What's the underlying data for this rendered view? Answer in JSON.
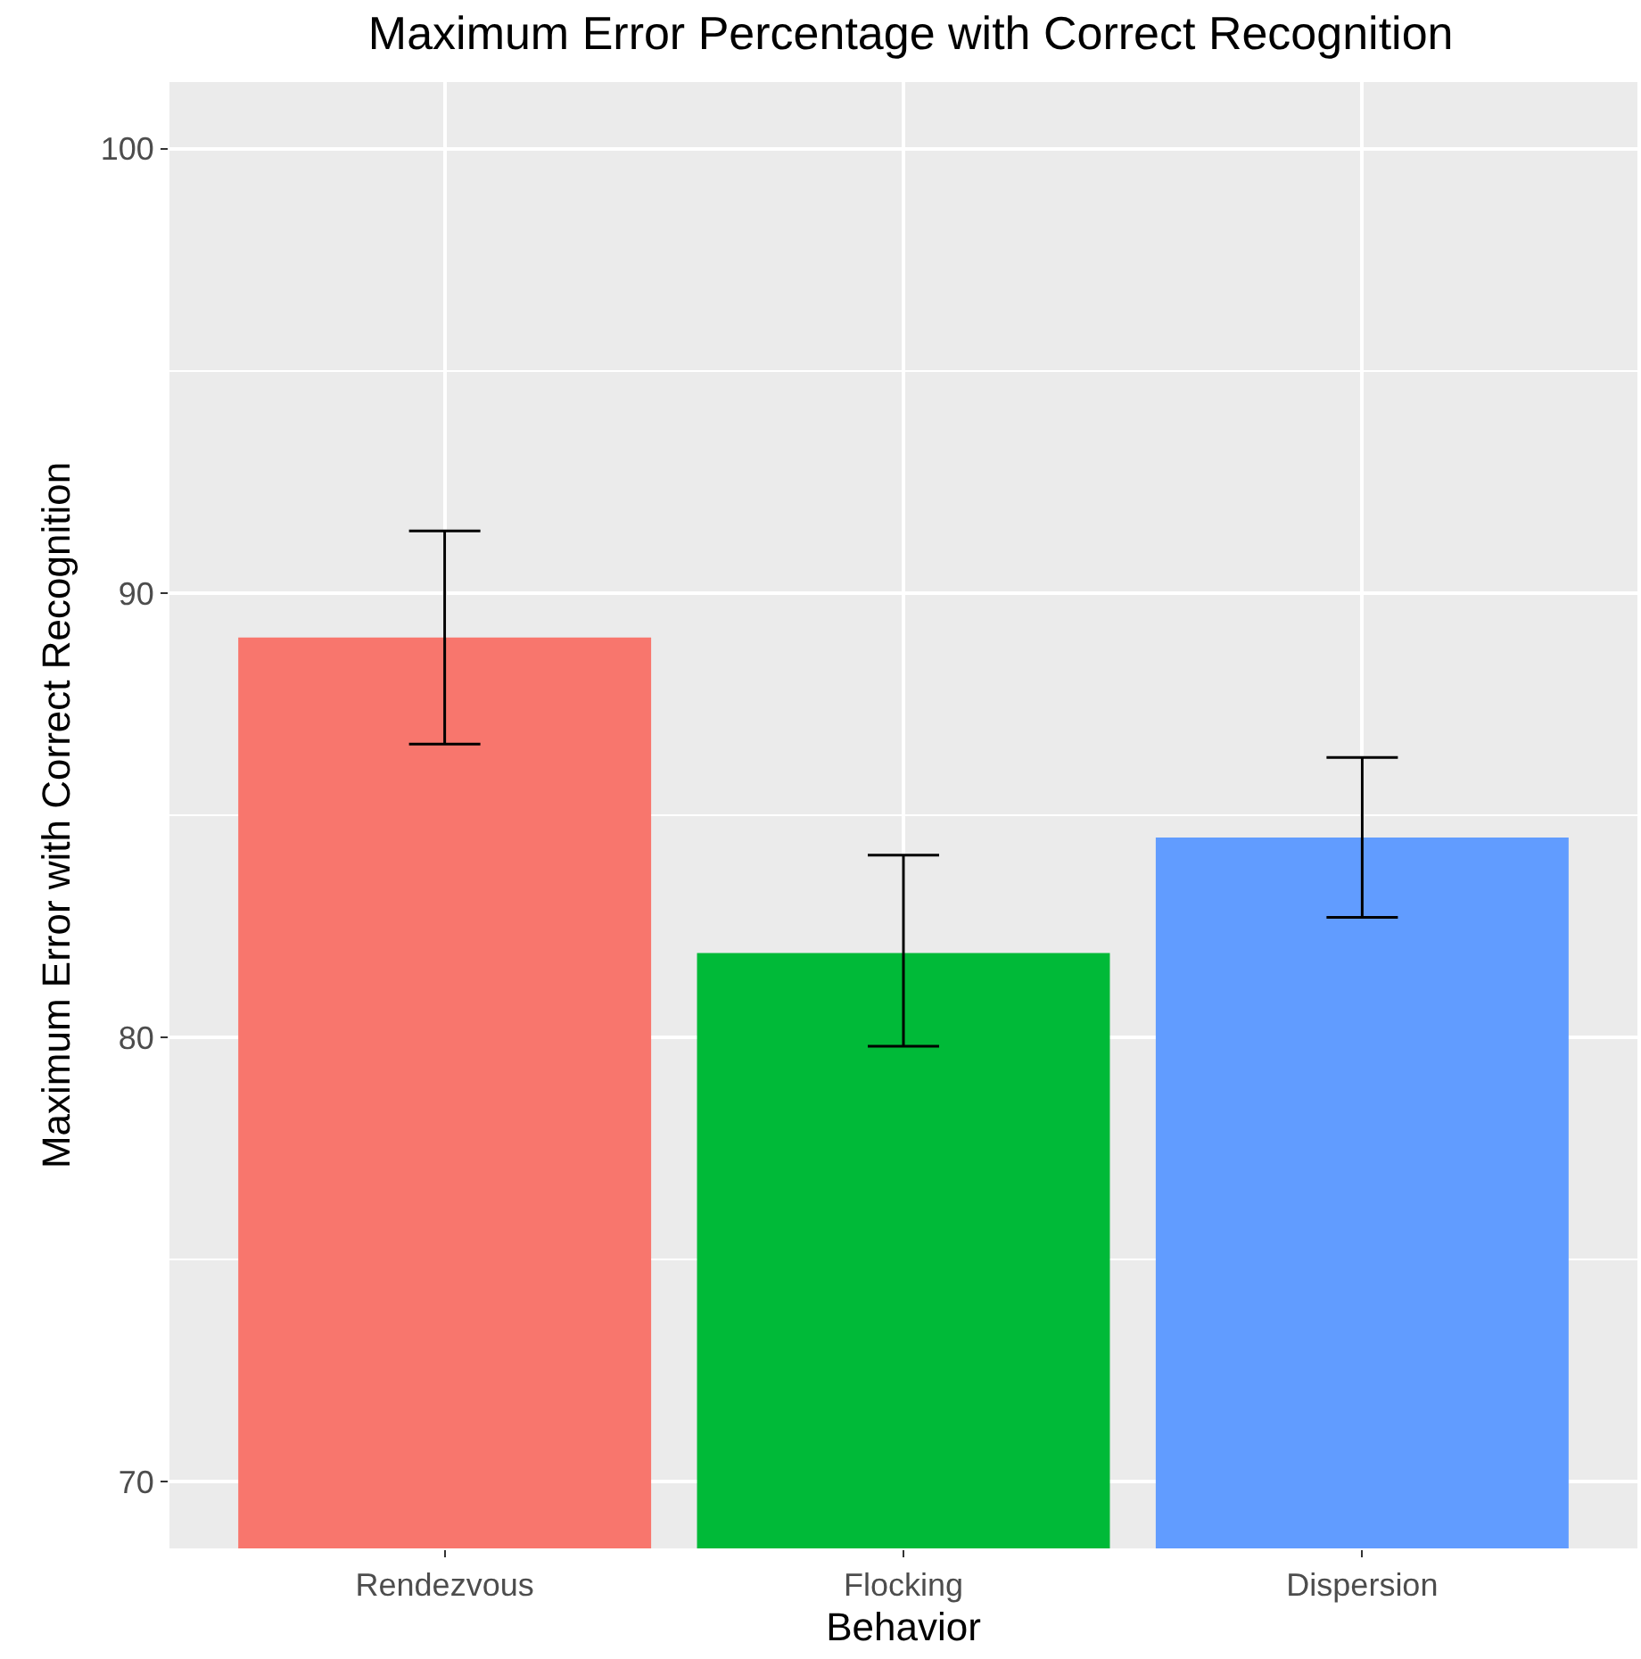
{
  "chart_data": {
    "type": "bar",
    "title": "Maximum Error Percentage with Correct Recognition",
    "xlabel": "Behavior",
    "ylabel": "Maximum Error with Correct Recognition",
    "categories": [
      "Rendezvous",
      "Flocking",
      "Dispersion"
    ],
    "values": [
      89.0,
      81.9,
      84.5
    ],
    "colors": [
      "#f8766d",
      "#00ba38",
      "#619cff"
    ],
    "errors": [
      [
        86.6,
        91.4
      ],
      [
        79.8,
        84.1
      ],
      [
        82.7,
        86.3
      ]
    ],
    "ylim": [
      68.5,
      101.5
    ],
    "yticks": [
      70,
      {
        "value": 75,
        "label": null
      },
      80,
      {
        "value": 85,
        "label": null
      },
      90,
      {
        "value": 95,
        "label": null
      },
      100
    ],
    "grid": true
  }
}
